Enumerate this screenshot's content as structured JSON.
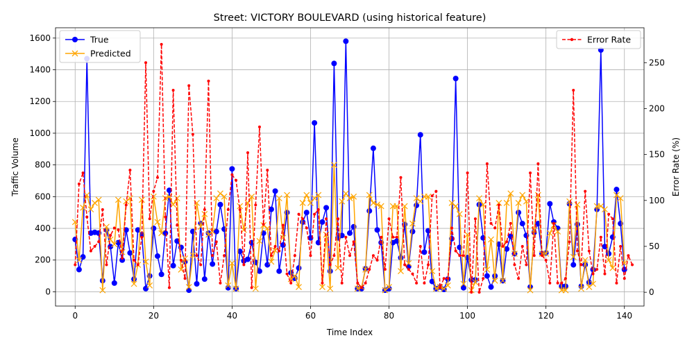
{
  "chart_data": {
    "type": "line",
    "title": "Street: VICTORY BOULEVARD (using historical feature)",
    "xlabel": "Time Index",
    "ylabel": "Traffic Volume",
    "y2label": "Error Rate (%)",
    "xlim": [
      -5,
      145
    ],
    "ylim": [
      -90,
      1665
    ],
    "y2lim": [
      -15,
      288
    ],
    "xticks": [
      0,
      20,
      40,
      60,
      80,
      100,
      120,
      140
    ],
    "yticks": [
      0,
      200,
      400,
      600,
      800,
      1000,
      1200,
      1400,
      1600
    ],
    "y2ticks": [
      0,
      50,
      100,
      150,
      200,
      250
    ],
    "grid": true,
    "legend_left": "upper-left",
    "legend_right": "upper-right",
    "colors": {
      "true": "#0000ff",
      "predicted": "#ffa500",
      "error": "#ff0000"
    },
    "series": [
      {
        "name": "True",
        "axis": "left",
        "marker": "circle",
        "values": [
          330,
          140,
          220,
          1470,
          370,
          375,
          370,
          70,
          390,
          285,
          55,
          310,
          200,
          390,
          245,
          80,
          390,
          360,
          20,
          100,
          400,
          225,
          110,
          370,
          640,
          165,
          320,
          280,
          190,
          10,
          380,
          50,
          430,
          80,
          370,
          175,
          380,
          550,
          395,
          25,
          775,
          20,
          255,
          195,
          205,
          310,
          185,
          130,
          370,
          170,
          520,
          635,
          130,
          295,
          500,
          120,
          85,
          150,
          440,
          500,
          340,
          1065,
          310,
          440,
          530,
          130,
          1440,
          340,
          355,
          1580,
          370,
          410,
          20,
          20,
          145,
          510,
          905,
          390,
          310,
          10,
          20,
          310,
          320,
          215,
          425,
          160,
          380,
          545,
          990,
          250,
          385,
          65,
          20,
          30,
          15,
          80,
          335,
          1345,
          280,
          25,
          215,
          75,
          75,
          550,
          340,
          100,
          30,
          100,
          300,
          70,
          270,
          350,
          240,
          500,
          430,
          355,
          30,
          375,
          430,
          240,
          245,
          555,
          440,
          400,
          35,
          35,
          555,
          170,
          425,
          35,
          170,
          60,
          140,
          520,
          1525,
          285,
          240,
          345,
          645,
          430,
          140
        ]
      },
      {
        "name": "Predicted",
        "axis": "left",
        "marker": "x",
        "values": [
          440,
          200,
          530,
          610,
          520,
          560,
          580,
          10,
          410,
          330,
          300,
          580,
          250,
          570,
          590,
          50,
          170,
          580,
          190,
          40,
          600,
          440,
          370,
          590,
          600,
          550,
          590,
          140,
          210,
          30,
          230,
          560,
          410,
          490,
          360,
          380,
          590,
          620,
          600,
          40,
          180,
          20,
          540,
          390,
          560,
          600,
          20,
          320,
          420,
          400,
          190,
          260,
          590,
          340,
          610,
          80,
          100,
          30,
          560,
          610,
          560,
          590,
          610,
          30,
          360,
          20,
          800,
          150,
          570,
          620,
          590,
          600,
          20,
          30,
          140,
          610,
          560,
          550,
          540,
          10,
          30,
          540,
          540,
          130,
          540,
          180,
          430,
          590,
          570,
          600,
          600,
          130,
          20,
          30,
          20,
          40,
          560,
          540,
          490,
          50,
          360,
          10,
          60,
          590,
          550,
          140,
          330,
          70,
          560,
          70,
          560,
          620,
          240,
          560,
          610,
          570,
          10,
          390,
          610,
          240,
          240,
          370,
          420,
          380,
          10,
          10,
          570,
          220,
          550,
          20,
          200,
          30,
          50,
          540,
          540,
          520,
          200,
          150,
          610,
          590,
          180
        ]
      },
      {
        "name": "Error Rate",
        "axis": "right",
        "marker": "dot",
        "values": [
          30,
          118,
          130,
          82,
          45,
          50,
          55,
          90,
          30,
          62,
          70,
          68,
          37,
          95,
          133,
          35,
          30,
          60,
          250,
          80,
          110,
          125,
          270,
          82,
          5,
          220,
          73,
          35,
          15,
          225,
          172,
          40,
          30,
          90,
          230,
          40,
          55,
          10,
          40,
          90,
          128,
          122,
          90,
          30,
          152,
          5,
          95,
          180,
          74,
          133,
          40,
          50,
          45,
          73,
          20,
          10,
          40,
          85,
          80,
          70,
          40,
          85,
          90,
          10,
          80,
          30,
          40,
          80,
          10,
          60,
          40,
          55,
          10,
          5,
          10,
          25,
          40,
          35,
          60,
          25,
          80,
          60,
          60,
          125,
          30,
          25,
          20,
          10,
          50,
          10,
          30,
          105,
          110,
          5,
          15,
          15,
          70,
          45,
          40,
          40,
          130,
          0,
          80,
          0,
          15,
          140,
          75,
          70,
          95,
          50,
          55,
          75,
          30,
          15,
          50,
          30,
          130,
          40,
          140,
          40,
          35,
          10,
          75,
          10,
          10,
          15,
          55,
          220,
          45,
          30,
          110,
          45,
          20,
          25,
          60,
          20,
          85,
          80,
          10,
          50,
          15,
          40,
          30
        ]
      }
    ]
  }
}
